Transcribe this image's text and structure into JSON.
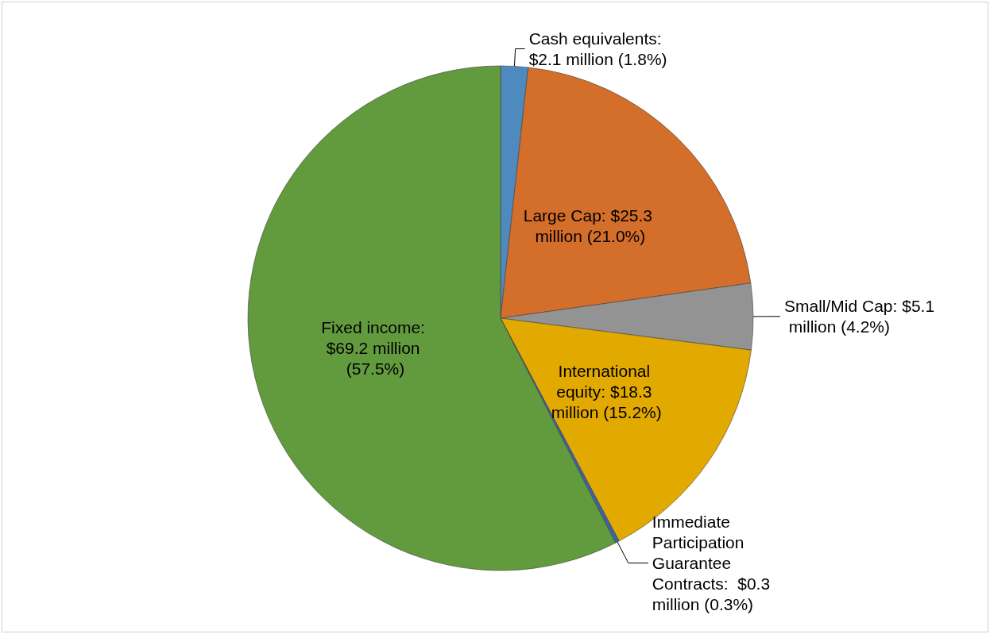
{
  "chart_data": {
    "type": "pie",
    "categories": [
      "Cash equivalents: $2.1 million (1.8%)",
      "Large Cap: $25.3 million (21.0%)",
      "Small/Mid Cap: $5.1 million (4.2%)",
      "International equity: $18.3 million (15.2%)",
      "Immediate Participation Guarantee Contracts:  $0.3 million (0.3%)",
      "Fixed income: $69.2 million (57.5%)"
    ],
    "values": [
      2.1,
      25.3,
      5.1,
      18.3,
      0.3,
      69.2
    ],
    "colors": [
      "#4e8abe",
      "#d46e2b",
      "#939393",
      "#e2a900",
      "#3a63ac",
      "#629a3e"
    ],
    "legend": false
  }
}
